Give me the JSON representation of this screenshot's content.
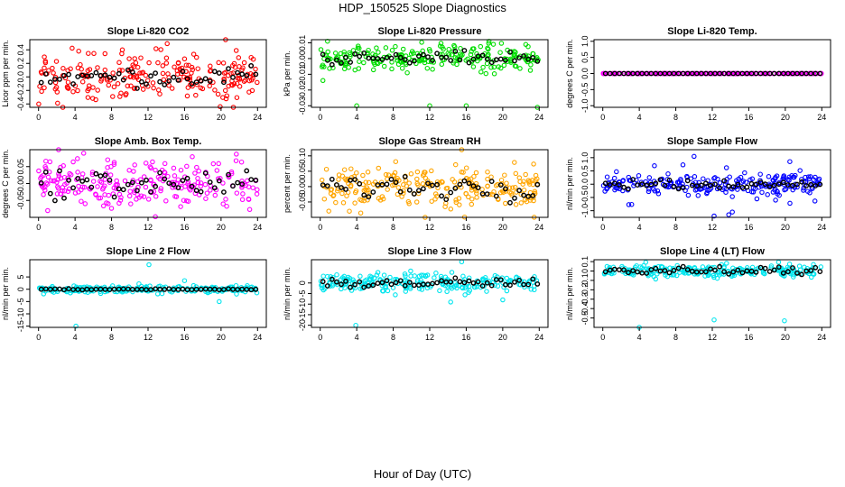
{
  "figure": {
    "title": "HDP_150525  Slope Diagnostics",
    "xlabel": "Hour of Day (UTC)"
  },
  "chart_data": [
    {
      "type": "scatter",
      "title": "Slope Li-820 CO2",
      "ylabel": "Licor ppm per min.",
      "xlim": [
        0,
        24
      ],
      "ylim": [
        -0.45,
        0.55
      ],
      "xticks": [
        0,
        4,
        8,
        12,
        16,
        20,
        24
      ],
      "yticks": [
        -0.4,
        -0.2,
        0,
        0.2,
        0.4
      ],
      "ytick_labels": [
        "-0.4",
        "-0.2",
        "0.0",
        "0.2",
        "0.4"
      ],
      "color": "#ff0000",
      "spread": 0.15,
      "extreme": 0.5,
      "black_spread": 0.07,
      "outliers": [
        [
          20.5,
          0.55
        ],
        [
          19.9,
          -0.44
        ]
      ]
    },
    {
      "type": "scatter",
      "title": "Slope Li-820 Pressure",
      "ylabel": "kPa per min.",
      "xlim": [
        0,
        24
      ],
      "ylim": [
        -0.031,
        0.012
      ],
      "xticks": [
        0,
        4,
        8,
        12,
        16,
        20,
        24
      ],
      "yticks": [
        -0.03,
        -0.02,
        -0.01,
        0,
        0.01
      ],
      "ytick_labels": [
        "-0.03",
        "-0.02",
        "-0.01",
        "0.00",
        "0.01"
      ],
      "color": "#00dd00",
      "spread": 0.004,
      "extreme": 0.01,
      "black_spread": 0.002,
      "outliers": [
        [
          4,
          -0.03
        ],
        [
          12,
          -0.03
        ],
        [
          16,
          -0.03
        ],
        [
          23.8,
          -0.031
        ],
        [
          0.3,
          -0.014
        ],
        [
          0.8,
          0.011
        ],
        [
          18.5,
          0.011
        ]
      ]
    },
    {
      "type": "scatter",
      "title": "Slope Li-820 Temp.",
      "ylabel": "degrees C per min.",
      "xlim": [
        0,
        24
      ],
      "ylim": [
        -1.05,
        1.05
      ],
      "xticks": [
        0,
        4,
        8,
        12,
        16,
        20,
        24
      ],
      "yticks": [
        -1,
        -0.5,
        0,
        0.5,
        1
      ],
      "ytick_labels": [
        "-1.0",
        "-0.5",
        "0.0",
        "0.5",
        "1.0"
      ],
      "color": "#ff00ff",
      "spread": 0,
      "extreme": 0,
      "black_spread": 0,
      "outliers": []
    },
    {
      "type": "scatter",
      "title": "Slope Amb. Box Temp.",
      "ylabel": "degrees C per min.",
      "xlim": [
        0,
        24
      ],
      "ylim": [
        -0.1,
        0.1
      ],
      "xticks": [
        0,
        4,
        8,
        12,
        16,
        20,
        24
      ],
      "yticks": [
        -0.05,
        0,
        0.05
      ],
      "ytick_labels": [
        "-0.05",
        "0.00",
        "0.05"
      ],
      "color": "#ff00ff",
      "spread": 0.03,
      "extreme": 0.09,
      "black_spread": 0.02,
      "outliers": [
        [
          2.2,
          0.1
        ],
        [
          12.8,
          -0.098
        ],
        [
          1.0,
          -0.08
        ]
      ]
    },
    {
      "type": "scatter",
      "title": "Slope Gas Stream RH",
      "ylabel": "percent per min.",
      "xlim": [
        0,
        24
      ],
      "ylim": [
        -0.1,
        0.12
      ],
      "xticks": [
        0,
        4,
        8,
        12,
        16,
        20,
        24
      ],
      "yticks": [
        -0.05,
        0,
        0.05,
        0.1
      ],
      "ytick_labels": [
        "-0.05",
        "0.00",
        "0.05",
        "0.10"
      ],
      "color": "#ffa500",
      "spread": 0.03,
      "extreme": 0.1,
      "black_spread": 0.02,
      "outliers": [
        [
          15.5,
          0.12
        ],
        [
          11.5,
          -0.1
        ],
        [
          3.2,
          -0.08
        ]
      ]
    },
    {
      "type": "scatter",
      "title": "Slope Sample Flow",
      "ylabel": "nl/min per min.",
      "xlim": [
        0,
        24
      ],
      "ylim": [
        -1.25,
        1.3
      ],
      "xticks": [
        0,
        4,
        8,
        12,
        16,
        20,
        24
      ],
      "yticks": [
        -1,
        -0.5,
        0,
        0.5,
        1
      ],
      "ytick_labels": [
        "-1.0",
        "-0.5",
        "0.0",
        "0.5",
        "1.0"
      ],
      "color": "#0000ff",
      "spread": 0.2,
      "extreme": 0.8,
      "black_spread": 0.08,
      "outliers": [
        [
          10,
          1.05
        ],
        [
          13.8,
          -1.15
        ],
        [
          14.2,
          -1.05
        ],
        [
          20.5,
          0.85
        ],
        [
          12.2,
          -1.2
        ]
      ]
    },
    {
      "type": "scatter",
      "title": "Slope Line 2 Flow",
      "ylabel": "nl/min per min.",
      "xlim": [
        0,
        24
      ],
      "ylim": [
        -15.5,
        12
      ],
      "xticks": [
        0,
        4,
        8,
        12,
        16,
        20,
        24
      ],
      "yticks": [
        -15,
        -10,
        -5,
        0,
        5
      ],
      "ytick_labels": [
        "-15",
        "-10",
        "-5",
        "0",
        "5"
      ],
      "color": "#00e5ee",
      "spread": 0.6,
      "extreme": 2,
      "black_spread": 0.1,
      "outliers": [
        [
          4.1,
          -15
        ],
        [
          12.1,
          10
        ],
        [
          19.8,
          -5
        ],
        [
          16,
          3.5
        ],
        [
          11,
          2.2
        ]
      ]
    },
    {
      "type": "scatter",
      "title": "Slope Line 3 Flow",
      "ylabel": "nl/min per min.",
      "xlim": [
        0,
        24
      ],
      "ylim": [
        -21,
        11
      ],
      "xticks": [
        0,
        4,
        8,
        12,
        16,
        20,
        24
      ],
      "yticks": [
        -20,
        -15,
        -10,
        -5,
        0
      ],
      "ytick_labels": [
        "-20",
        "-15",
        "-10",
        "-5",
        "0"
      ],
      "color": "#00e5ee",
      "spread": 2,
      "extreme": 6,
      "black_spread": 1.2,
      "outliers": [
        [
          3.9,
          -20
        ],
        [
          15.5,
          10
        ],
        [
          20,
          -8
        ],
        [
          14.3,
          -9
        ]
      ]
    },
    {
      "type": "scatter",
      "title": "Slope Line 4 (LT) Flow",
      "ylabel": "nl/min per min.",
      "xlim": [
        0,
        24
      ],
      "ylim": [
        -0.6,
        0.12
      ],
      "xticks": [
        0,
        4,
        8,
        12,
        16,
        20,
        24
      ],
      "yticks": [
        -0.5,
        -0.4,
        -0.3,
        -0.2,
        -0.1,
        0,
        0.1
      ],
      "ytick_labels": [
        "-0.5",
        "-0.4",
        "-0.3",
        "-0.2",
        "-0.1",
        "0",
        "0.1"
      ],
      "color": "#00e5ee",
      "spread": 0.03,
      "extreme": 0.1,
      "black_spread": 0.02,
      "outliers": [
        [
          4,
          -0.6
        ],
        [
          12.2,
          -0.52
        ],
        [
          19.9,
          -0.53
        ]
      ]
    }
  ]
}
